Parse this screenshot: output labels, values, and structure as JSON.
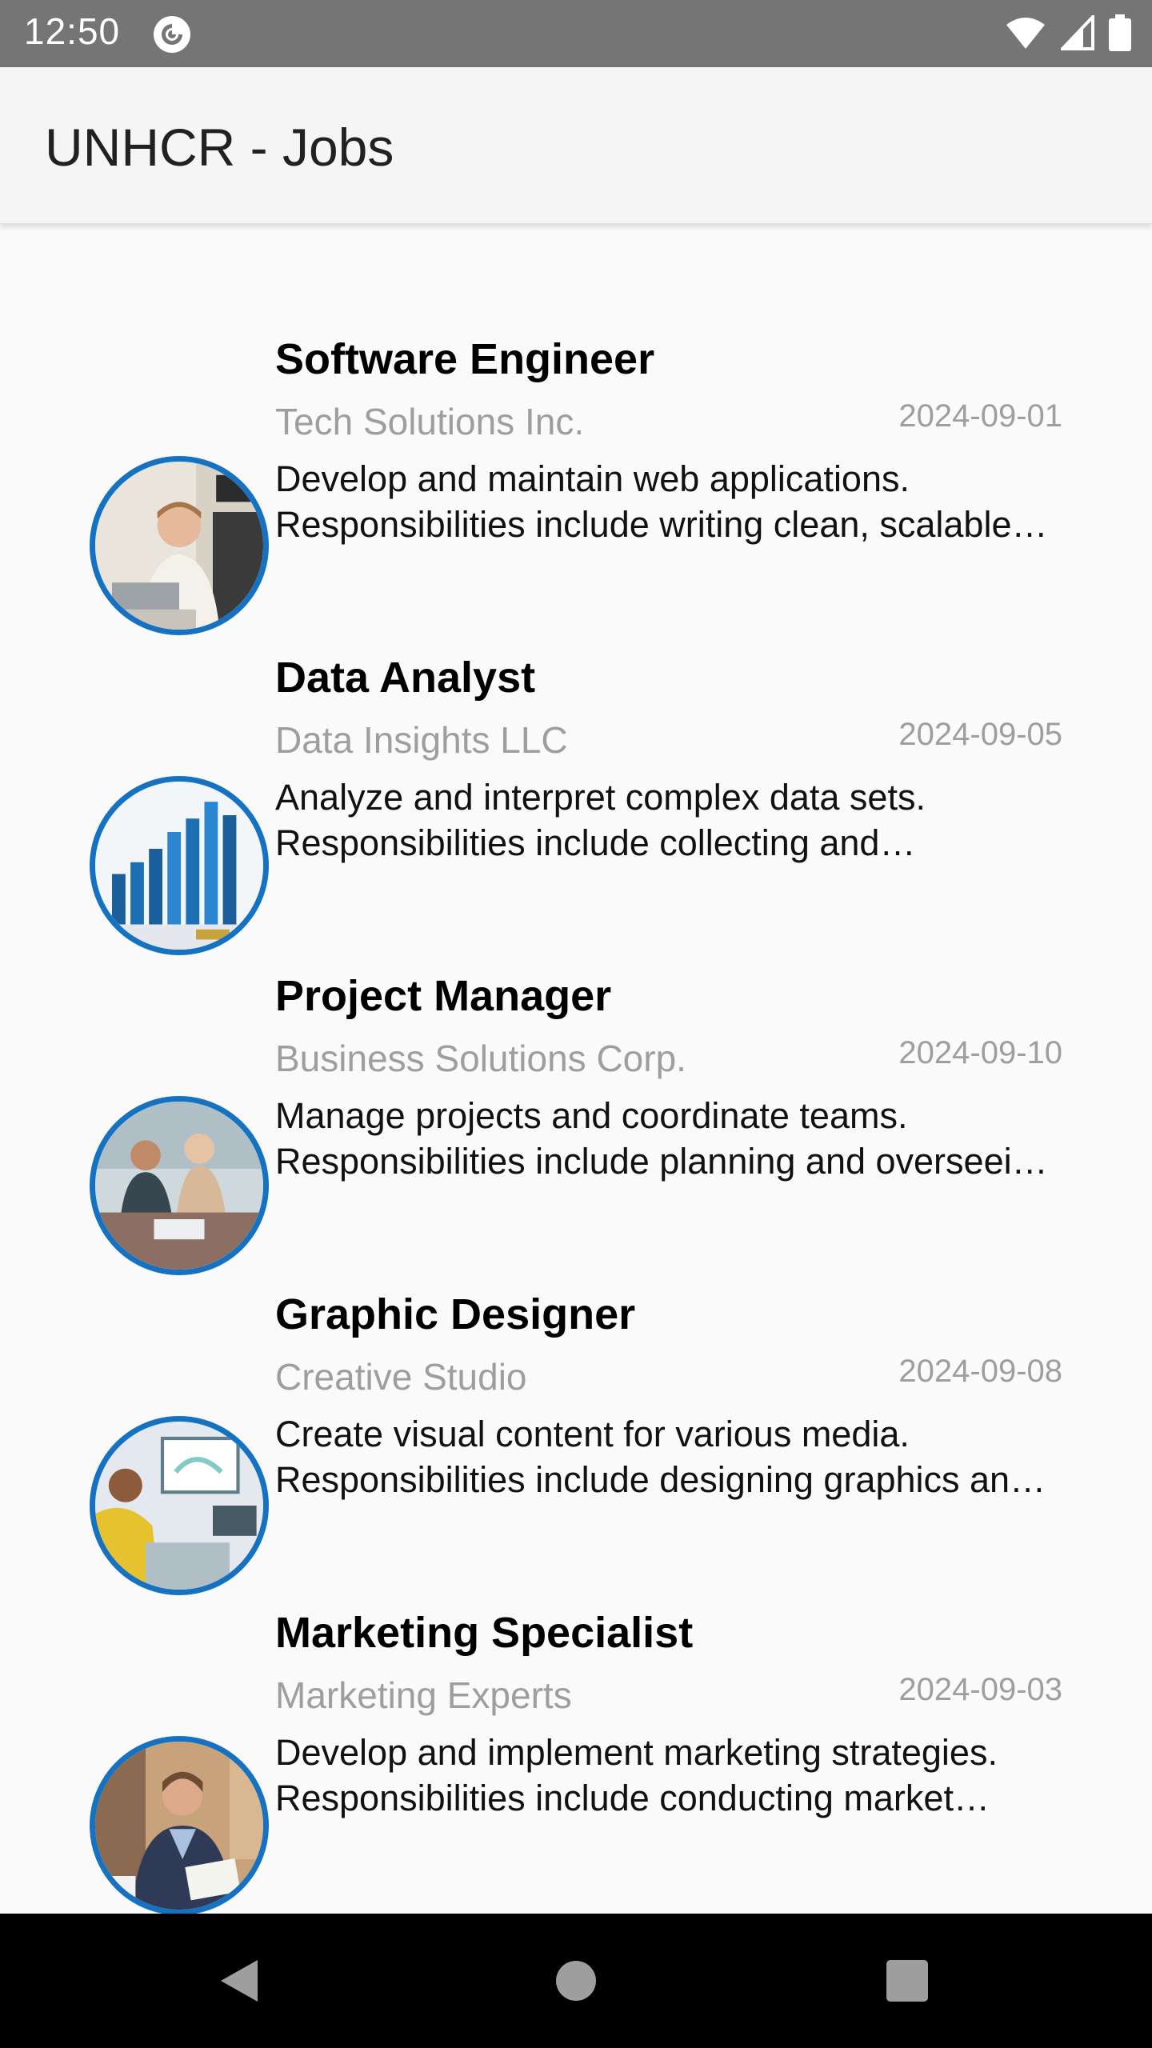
{
  "status_bar": {
    "time": "12:50",
    "icons": [
      "pocket-casts-icon",
      "wifi-icon",
      "cellular-signal-icon",
      "battery-icon"
    ]
  },
  "app_bar": {
    "title": "UNHCR - Jobs"
  },
  "colors": {
    "status_bar": "#757575",
    "app_bar": "#f5f5f5",
    "avatar_border": "#1572c2",
    "secondary_text": "#9e9e9e",
    "nav_bar": "#000000"
  },
  "jobs": [
    {
      "title": "Software Engineer",
      "company": "Tech Solutions Inc.",
      "date": "2024-09-01",
      "description": "Develop and maintain web applications. Responsibilities include writing clean, scalable code and collaborating with the team.",
      "image": "man-at-laptop-photo"
    },
    {
      "title": "Data Analyst",
      "company": "Data Insights LLC",
      "date": "2024-09-05",
      "description": "Analyze and interpret complex data sets. Responsibilities include collecting and processing data to support decisions.",
      "image": "bar-chart-photo"
    },
    {
      "title": "Project Manager",
      "company": "Business Solutions Corp.",
      "date": "2024-09-10",
      "description": "Manage projects and coordinate teams. Responsibilities include planning and overseeing project delivery.",
      "image": "team-meeting-photo"
    },
    {
      "title": "Graphic Designer",
      "company": "Creative Studio",
      "date": "2024-09-08",
      "description": "Create visual content for various media. Responsibilities include designing graphics and layouts.",
      "image": "designer-at-desk-photo"
    },
    {
      "title": "Marketing Specialist",
      "company": "Marketing Experts",
      "date": "2024-09-03",
      "description": "Develop and implement marketing strategies. Responsibilities include conducting market research and campaigns.",
      "image": "businessman-reading-photo"
    }
  ],
  "nav_bar": {
    "buttons": [
      "back-icon",
      "home-icon",
      "recents-icon"
    ]
  }
}
